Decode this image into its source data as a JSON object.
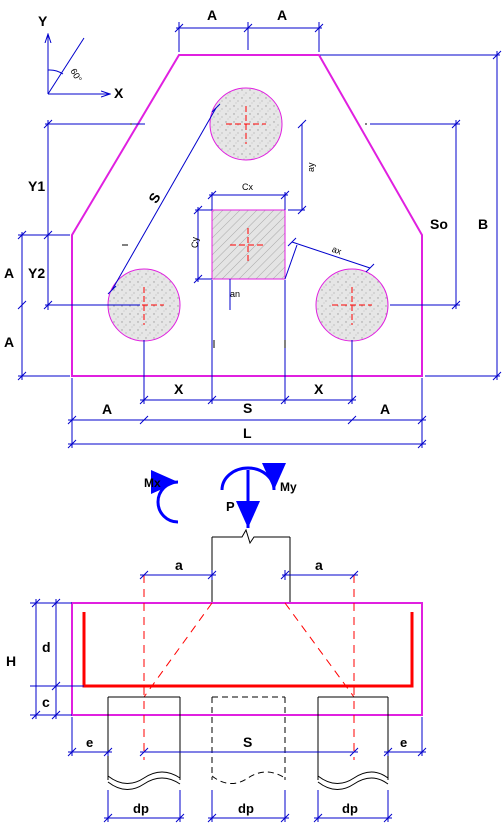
{
  "axes": {
    "y": "Y",
    "x": "X",
    "angle": "60°"
  },
  "plan": {
    "top_A1": "A",
    "top_A2": "A",
    "Y1": "Y1",
    "Y2": "Y2",
    "A_left1": "A",
    "A_left2": "A",
    "S_diag": "S",
    "cx": "Cx",
    "cy": "Cy",
    "ay": "ay",
    "ax": "ax",
    "an": "an",
    "So": "So",
    "B": "B",
    "X_left": "X",
    "S_bottom": "S",
    "X_right": "X",
    "A_bot_left": "A",
    "A_bot_right": "A",
    "L": "L"
  },
  "section": {
    "Mx": "Mx",
    "My": "My",
    "P": "P",
    "a_left": "a",
    "a_right": "a",
    "H": "H",
    "d": "d",
    "c": "c",
    "e_left": "e",
    "S": "S",
    "e_right": "e",
    "dp1": "dp",
    "dp2": "dp",
    "dp3": "dp"
  },
  "colors": {
    "outline": "#e020e0",
    "rebar": "#ff0000",
    "dim": "#0000cc",
    "moment": "#0000ff",
    "pile_fill": "#e8e8e8"
  }
}
